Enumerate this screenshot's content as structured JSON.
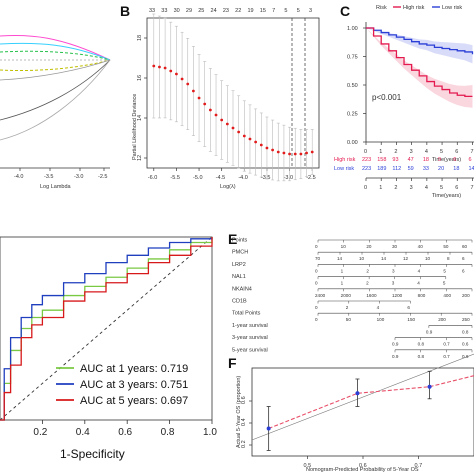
{
  "panel_labels": [
    "B",
    "C",
    "E",
    "F"
  ],
  "panelA": {
    "xlabel": "Log Lambda",
    "x_ticks": [
      "-4.0",
      "-3.5",
      "-3.0",
      "-2.5"
    ]
  },
  "panelB": {
    "xlabel": "Log(λ)",
    "ylabel": "Partial Likelihood Deviance",
    "top_counts": [
      "33",
      "33",
      "30",
      "29",
      "25",
      "24",
      "23",
      "22",
      "19",
      "15",
      "7",
      "5",
      "5",
      "3"
    ],
    "x_ticks": [
      "-6.0",
      "-5.5",
      "-5.0",
      "-4.5",
      "-4.0",
      "-3.5",
      "-3.0",
      "-2.5"
    ],
    "y_ticks": [
      "12",
      "14",
      "16",
      "18"
    ]
  },
  "panelC": {
    "legend_title": "Risk",
    "legend_items": [
      "High risk",
      "Low risk"
    ],
    "pvalue": "p<0.001",
    "xlabel": "Time(years)",
    "x_ticks": [
      "0",
      "1",
      "2",
      "3",
      "4",
      "5",
      "6",
      "7"
    ],
    "y_ticks": [
      "0.00",
      "0.25",
      "0.50",
      "0.75",
      "1.00"
    ],
    "risk_table": [
      {
        "label": "High risk",
        "counts": [
          "223",
          "158",
          "93",
          "47",
          "18",
          "9",
          "6",
          "6"
        ],
        "color": "#e41a4f"
      },
      {
        "label": "Low risk",
        "counts": [
          "223",
          "189",
          "112",
          "59",
          "33",
          "20",
          "18",
          "14"
        ],
        "color": "#2b3fd6"
      }
    ],
    "colors": {
      "high": "#e41a4f",
      "low": "#2b3fd6"
    }
  },
  "panelD": {
    "xlabel": "1-Specificity",
    "x_ticks": [
      "0.2",
      "0.4",
      "0.6",
      "0.8",
      "1.0"
    ],
    "legend": [
      {
        "text": "AUC at 1 years: 0.719",
        "color": "#7ac943"
      },
      {
        "text": "AUC at 3 years: 0.751",
        "color": "#1f3fbf"
      },
      {
        "text": "AUC at 5 years: 0.697",
        "color": "#d7191c"
      }
    ]
  },
  "panelE": {
    "rows": [
      {
        "label": "Points",
        "ticks": [
          "0",
          "10",
          "20",
          "30",
          "40",
          "50",
          "60"
        ]
      },
      {
        "label": "PMCH",
        "ticks": [
          "70",
          "14",
          "10",
          "14",
          "12",
          "10",
          "8",
          "6"
        ]
      },
      {
        "label": "LRP2",
        "ticks": [
          "0",
          "1",
          "2",
          "3",
          "4",
          "5",
          "6"
        ]
      },
      {
        "label": "NAL1",
        "ticks": [
          "0",
          "1",
          "2",
          "3",
          "4",
          "5"
        ]
      },
      {
        "label": "NKAIN4",
        "ticks": [
          "2400",
          "2000",
          "1600",
          "1200",
          "800",
          "400",
          "200"
        ]
      },
      {
        "label": "CD1B",
        "ticks": [
          "0",
          "2",
          "4",
          "6"
        ]
      },
      {
        "label": "Total Points",
        "ticks": [
          "0",
          "50",
          "100",
          "150",
          "200",
          "250"
        ]
      },
      {
        "label": "1-year survival",
        "ticks": [
          "0.9",
          "0.8"
        ]
      },
      {
        "label": "3-year survival",
        "ticks": [
          "0.9",
          "0.8",
          "0.7",
          "0.6"
        ]
      },
      {
        "label": "5-year survival",
        "ticks": [
          "0.9",
          "0.8",
          "0.7",
          "0.6"
        ]
      }
    ]
  },
  "panelF": {
    "xlabel": "Nomogram-Predicted Probability of 5-Year OS",
    "ylabel": "Actual 5-Year OS (proportion)",
    "x_ticks": [
      "0.5",
      "0.6",
      "0.7"
    ],
    "y_ticks": [
      "0.2",
      "0.4",
      "0.6"
    ]
  },
  "chart_data": [
    {
      "type": "line",
      "title": "",
      "xlabel": "Log(λ)",
      "ylabel": "Partial Likelihood Deviance",
      "x": [
        -6.0,
        -5.75,
        -5.5,
        -5.25,
        -5.0,
        -4.75,
        -4.5,
        -4.25,
        -4.0,
        -3.75,
        -3.5,
        -3.25,
        -3.0,
        -2.75,
        -2.5
      ],
      "series": [
        {
          "name": "",
          "values": [
            16.6,
            16.5,
            16.2,
            15.7,
            15.0,
            14.4,
            13.9,
            13.5,
            13.1,
            12.8,
            12.5,
            12.3,
            12.2,
            12.2,
            12.3
          ]
        }
      ],
      "ylim": [
        11.5,
        19
      ]
    },
    {
      "type": "line",
      "title": "",
      "xlabel": "Time(years)",
      "ylabel": "",
      "x": [
        0,
        0.5,
        1,
        1.5,
        2,
        2.5,
        3,
        3.5,
        4,
        4.5,
        5,
        5.5,
        6,
        6.5,
        7
      ],
      "series": [
        {
          "name": "High risk",
          "values": [
            1.0,
            0.93,
            0.86,
            0.8,
            0.74,
            0.68,
            0.63,
            0.58,
            0.53,
            0.49,
            0.46,
            0.43,
            0.41,
            0.4,
            0.4
          ]
        },
        {
          "name": "Low risk",
          "values": [
            1.0,
            0.98,
            0.96,
            0.94,
            0.92,
            0.9,
            0.88,
            0.86,
            0.85,
            0.83,
            0.82,
            0.81,
            0.8,
            0.79,
            0.77
          ]
        }
      ],
      "xlim": [
        0,
        7
      ],
      "ylim": [
        0,
        1
      ]
    },
    {
      "type": "line",
      "title": "",
      "xlabel": "1-Specificity",
      "ylabel": "",
      "series": [
        {
          "name": "AUC at 1 years: 0.719",
          "x": [
            0,
            0.02,
            0.05,
            0.1,
            0.15,
            0.2,
            0.3,
            0.4,
            0.5,
            0.6,
            0.7,
            0.8,
            0.9,
            1.0
          ],
          "values": [
            0,
            0.2,
            0.38,
            0.5,
            0.56,
            0.6,
            0.68,
            0.73,
            0.78,
            0.83,
            0.88,
            0.93,
            0.97,
            1.0
          ]
        },
        {
          "name": "AUC at 3 years: 0.751",
          "x": [
            0,
            0.02,
            0.05,
            0.1,
            0.15,
            0.2,
            0.3,
            0.4,
            0.5,
            0.6,
            0.7,
            0.8,
            0.9,
            1.0
          ],
          "values": [
            0,
            0.28,
            0.45,
            0.56,
            0.63,
            0.68,
            0.75,
            0.8,
            0.86,
            0.9,
            0.94,
            0.97,
            0.99,
            1.0
          ]
        },
        {
          "name": "AUC at 5 years: 0.697",
          "x": [
            0,
            0.02,
            0.05,
            0.1,
            0.15,
            0.2,
            0.3,
            0.4,
            0.5,
            0.6,
            0.7,
            0.8,
            0.9,
            1.0
          ],
          "values": [
            0,
            0.15,
            0.3,
            0.45,
            0.52,
            0.56,
            0.65,
            0.7,
            0.75,
            0.8,
            0.86,
            0.9,
            0.95,
            1.0
          ]
        }
      ],
      "xlim": [
        0,
        1
      ],
      "ylim": [
        0,
        1
      ]
    },
    {
      "type": "scatter",
      "title": "",
      "xlabel": "Nomogram-Predicted Probability of 5-Year OS",
      "ylabel": "Actual 5-Year OS (proportion)",
      "x": [
        0.43,
        0.59,
        0.72
      ],
      "series": [
        {
          "name": "",
          "values": [
            0.35,
            0.67,
            0.73
          ],
          "lower": [
            0.15,
            0.55,
            0.62
          ],
          "upper": [
            0.55,
            0.8,
            0.87
          ]
        }
      ],
      "xlim": [
        0.4,
        0.8
      ],
      "ylim": [
        0.1,
        0.9
      ]
    }
  ]
}
